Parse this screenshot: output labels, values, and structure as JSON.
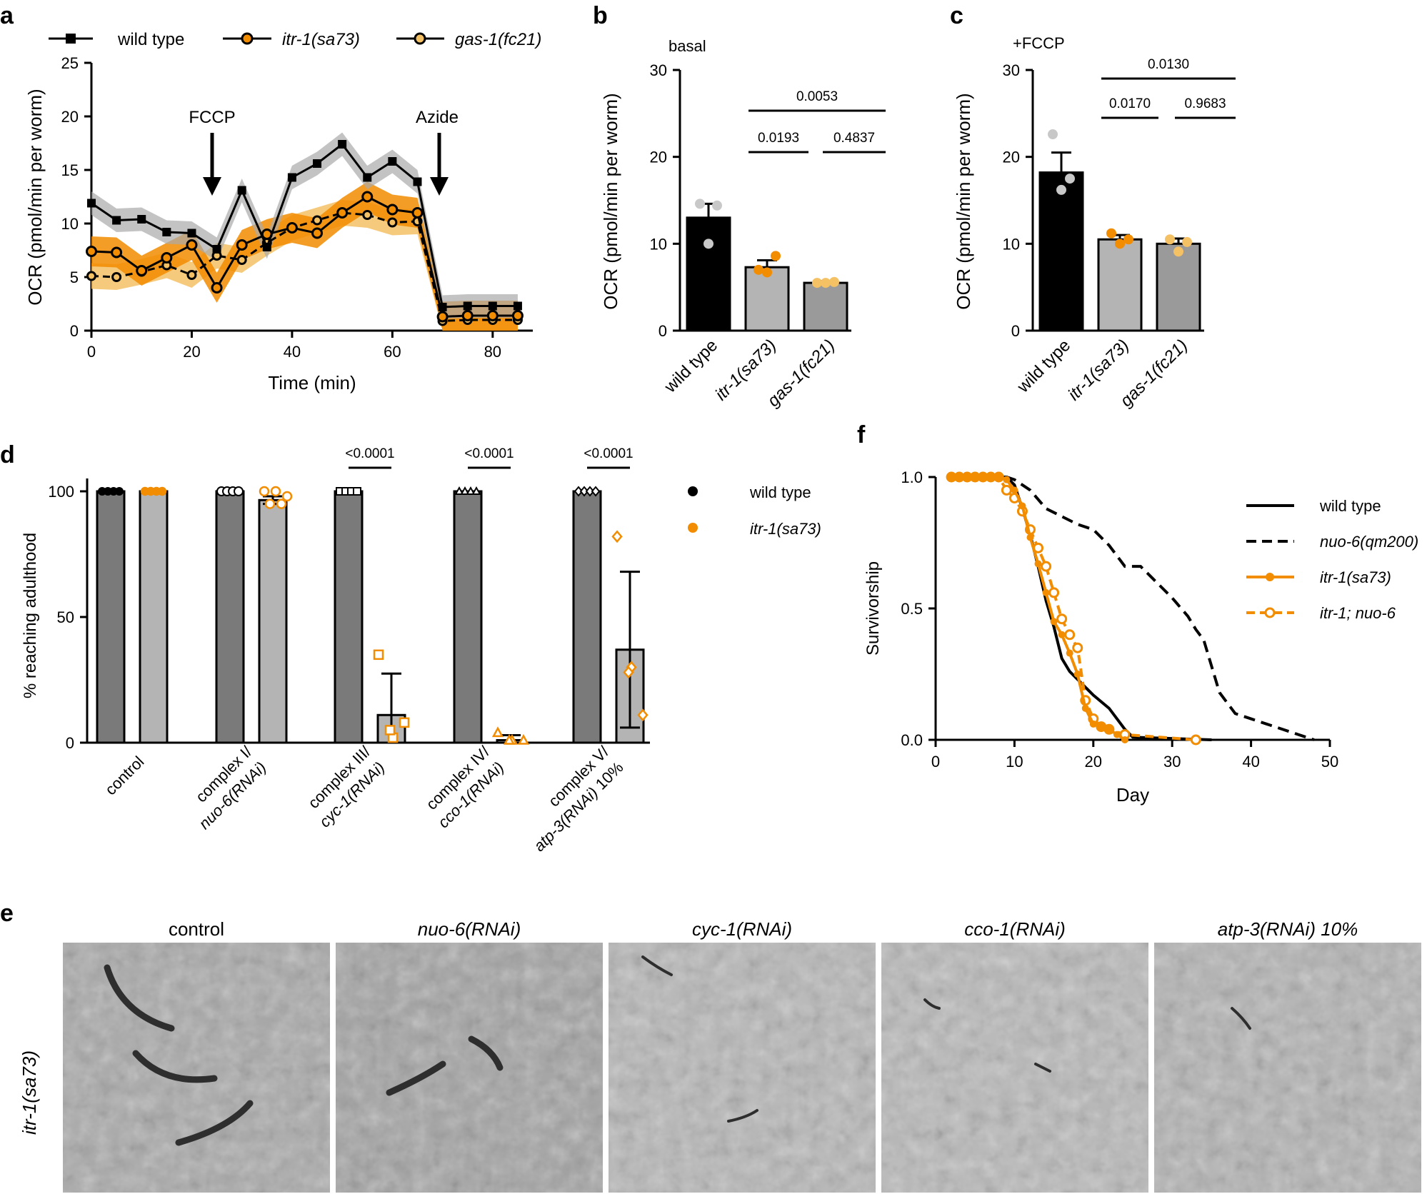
{
  "colors": {
    "wt": "#000000",
    "itr": "#f28c00",
    "gas": "#f5c165",
    "bar_dark": "#7a7a7a",
    "bar_light": "#b4b4b4",
    "bar_mid": "#9a9a9a"
  },
  "panel_a": {
    "label": "a",
    "legend": [
      "wild type",
      "itr-1(sa73)",
      "gas-1(fc21)"
    ],
    "arrows": [
      "FCCP",
      "Azide"
    ]
  },
  "panel_b": {
    "label": "b",
    "title": "basal",
    "p_values": [
      "0.0053",
      "0.0193",
      "0.4837"
    ]
  },
  "panel_c": {
    "label": "c",
    "title": "+FCCP",
    "p_values": [
      "0.0130",
      "0.0170",
      "0.9683"
    ]
  },
  "panel_d": {
    "label": "d",
    "p_values": [
      "<0.0001",
      "<0.0001",
      "<0.0001"
    ],
    "legend": [
      "wild type",
      "itr-1(sa73)"
    ]
  },
  "panel_e": {
    "label": "e",
    "row_label": "itr-1(sa73)",
    "columns": [
      "control",
      "nuo-6(RNAi)",
      "cyc-1(RNAi)",
      "cco-1(RNAi)",
      "atp-3(RNAi) 10%"
    ]
  },
  "panel_f": {
    "label": "f",
    "legend": [
      "wild type",
      "nuo-6(qm200)",
      "itr-1(sa73)",
      "itr-1; nuo-6"
    ]
  },
  "chart_data": [
    {
      "panel": "a",
      "type": "line",
      "xlabel": "Time (min)",
      "ylabel": "OCR (pmol/min per worm)",
      "xlim": [
        0,
        88
      ],
      "ylim": [
        0,
        25
      ],
      "xticks": [
        0,
        20,
        40,
        60,
        80
      ],
      "yticks": [
        0,
        5,
        10,
        15,
        20,
        25
      ],
      "series": [
        {
          "name": "wild type",
          "x": [
            0,
            5,
            10,
            15,
            20,
            25,
            30,
            35,
            40,
            45,
            50,
            55,
            60,
            65,
            70,
            75,
            80,
            85
          ],
          "y": [
            11.9,
            10.3,
            10.4,
            9.2,
            9.1,
            7.6,
            13.1,
            7.8,
            14.3,
            15.6,
            17.4,
            14.3,
            15.8,
            13.9,
            2.2,
            2.3,
            2.3,
            2.3
          ]
        },
        {
          "name": "itr-1(sa73)",
          "x": [
            0,
            5,
            10,
            15,
            20,
            25,
            30,
            35,
            40,
            45,
            50,
            55,
            60,
            65,
            70,
            75,
            80,
            85
          ],
          "y": [
            7.4,
            7.3,
            5.6,
            6.8,
            8.0,
            4.0,
            8.0,
            9.0,
            9.6,
            9.1,
            11.0,
            12.5,
            11.3,
            11.0,
            1.3,
            1.4,
            1.4,
            1.4
          ]
        },
        {
          "name": "gas-1(fc21)",
          "x": [
            0,
            5,
            10,
            15,
            20,
            25,
            30,
            35,
            40,
            45,
            50,
            55,
            60,
            65,
            70,
            75,
            80,
            85
          ],
          "y": [
            5.1,
            5.0,
            5.5,
            6.1,
            5.2,
            7.0,
            6.6,
            8.2,
            9.6,
            10.3,
            11.0,
            10.8,
            10.1,
            10.2,
            0.9,
            1.0,
            1.0,
            1.0
          ]
        }
      ]
    },
    {
      "panel": "b",
      "type": "bar",
      "ylabel": "OCR (pmol/min per worm)",
      "ylim": [
        0,
        30
      ],
      "yticks": [
        0,
        10,
        20,
        30
      ],
      "categories": [
        "wild type",
        "itr-1(sa73)",
        "gas-1(fc21)"
      ],
      "values": [
        13.0,
        7.3,
        5.5
      ],
      "errors": [
        1.6,
        0.8,
        0.2
      ],
      "points": [
        [
          14.6,
          10.0,
          14.4
        ],
        [
          7.0,
          6.7,
          8.6
        ],
        [
          5.5,
          5.5,
          5.6
        ]
      ]
    },
    {
      "panel": "c",
      "type": "bar",
      "ylabel": "OCR (pmol/min per worm)",
      "ylim": [
        0,
        30
      ],
      "yticks": [
        0,
        10,
        20,
        30
      ],
      "categories": [
        "wild type",
        "itr-1(sa73)",
        "gas-1(fc21)"
      ],
      "values": [
        18.2,
        10.5,
        10.0
      ],
      "errors": [
        2.3,
        0.5,
        0.6
      ],
      "points": [
        [
          22.6,
          16.2,
          17.5
        ],
        [
          11.2,
          10.0,
          10.5
        ],
        [
          10.5,
          9.1,
          10.2
        ]
      ]
    },
    {
      "panel": "d",
      "type": "bar",
      "ylabel": "% reaching adulthood",
      "ylim": [
        0,
        100
      ],
      "yticks": [
        0,
        50,
        100
      ],
      "categories": [
        "control",
        "complex I/ nuo-6(RNAi)",
        "complex III/ cyc-1(RNAi)",
        "complex IV/ cco-1(RNAi)",
        "complex V/ atp-3(RNAi) 10%"
      ],
      "series": [
        {
          "name": "wild type",
          "values": [
            100,
            100,
            100,
            100,
            100
          ]
        },
        {
          "name": "itr-1(sa73)",
          "values": [
            100,
            96.5,
            11,
            1,
            37
          ],
          "errors": [
            0,
            1.5,
            16.5,
            2,
            31
          ]
        }
      ]
    },
    {
      "panel": "f",
      "type": "line",
      "xlabel": "Day",
      "ylabel": "Survivorship",
      "xlim": [
        0,
        50
      ],
      "ylim": [
        0,
        1.0
      ],
      "xticks": [
        0,
        10,
        20,
        30,
        40,
        50
      ],
      "yticks": [
        0.0,
        0.5,
        1.0
      ],
      "series": [
        {
          "name": "wild type",
          "x": [
            2,
            9,
            10,
            11,
            12,
            13,
            14,
            15,
            16,
            17,
            18,
            19,
            20,
            22,
            23,
            24,
            25,
            30,
            35
          ],
          "y": [
            1,
            1,
            0.97,
            0.88,
            0.78,
            0.66,
            0.53,
            0.43,
            0.31,
            0.26,
            0.23,
            0.2,
            0.17,
            0.12,
            0.08,
            0.04,
            0.01,
            0.005,
            0
          ]
        },
        {
          "name": "nuo-6(qm200)",
          "x": [
            2,
            9,
            10,
            12,
            14,
            16,
            18,
            20,
            22,
            24,
            26,
            28,
            30,
            32,
            33,
            34,
            35,
            36,
            38,
            40,
            42,
            44,
            46,
            48
          ],
          "y": [
            1,
            1,
            0.99,
            0.95,
            0.88,
            0.85,
            0.82,
            0.8,
            0.74,
            0.66,
            0.66,
            0.6,
            0.54,
            0.47,
            0.42,
            0.38,
            0.28,
            0.18,
            0.1,
            0.08,
            0.06,
            0.04,
            0.02,
            0
          ]
        },
        {
          "name": "itr-1(sa73)",
          "x": [
            2,
            3,
            4,
            5,
            6,
            7,
            8,
            9,
            10,
            11,
            12,
            13,
            14,
            15,
            16,
            17,
            18,
            19,
            20,
            21,
            22,
            23,
            24
          ],
          "y": [
            1,
            1,
            1,
            1,
            1,
            1,
            1,
            0.99,
            0.95,
            0.89,
            0.77,
            0.67,
            0.56,
            0.45,
            0.4,
            0.33,
            0.25,
            0.12,
            0.06,
            0.05,
            0.04,
            0.02,
            0
          ]
        },
        {
          "name": "itr-1; nuo-6",
          "x": [
            2,
            3,
            4,
            5,
            6,
            7,
            8,
            9,
            10,
            11,
            12,
            13,
            14,
            15,
            16,
            17,
            18,
            19,
            20,
            21,
            22,
            24,
            33
          ],
          "y": [
            1,
            1,
            1,
            1,
            1,
            1,
            1,
            0.95,
            0.92,
            0.87,
            0.8,
            0.73,
            0.66,
            0.56,
            0.46,
            0.4,
            0.35,
            0.15,
            0.08,
            0.05,
            0.04,
            0.02,
            0
          ]
        }
      ]
    }
  ]
}
